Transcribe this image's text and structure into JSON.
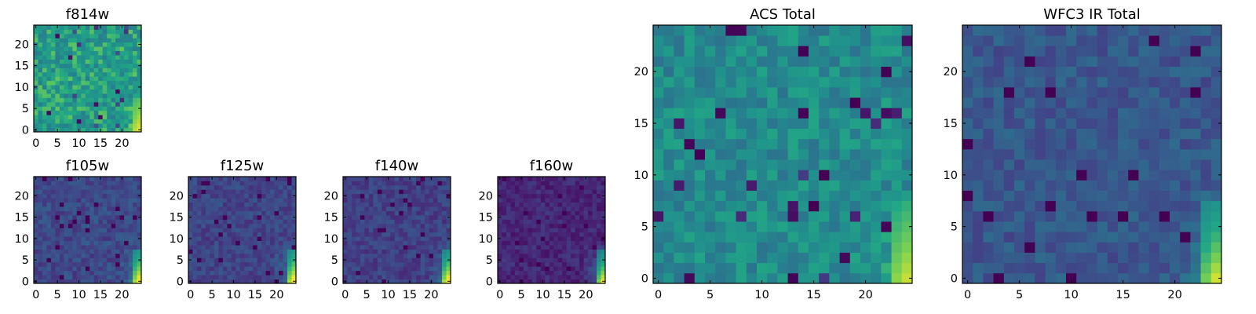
{
  "chart_data": [
    {
      "type": "heatmap",
      "title": "f814w",
      "grid": [
        25,
        25
      ],
      "xticks": [
        "0",
        "5",
        "10",
        "15",
        "20"
      ],
      "yticks": [
        "0",
        "5",
        "10",
        "15",
        "20"
      ],
      "colormap": "viridis",
      "base_level": 0.68,
      "noise": 0.16,
      "hot_corner": 0.3,
      "seed": 11
    },
    {
      "type": "heatmap",
      "title": "f105w",
      "grid": [
        25,
        25
      ],
      "xticks": [
        "0",
        "5",
        "10",
        "15",
        "20"
      ],
      "yticks": [
        "0",
        "5",
        "10",
        "15",
        "20"
      ],
      "colormap": "viridis",
      "base_level": 0.28,
      "noise": 0.1,
      "hot_corner": 0.75,
      "seed": 23
    },
    {
      "type": "heatmap",
      "title": "f125w",
      "grid": [
        25,
        25
      ],
      "xticks": [
        "0",
        "5",
        "10",
        "15",
        "20"
      ],
      "yticks": [
        "0",
        "5",
        "10",
        "15",
        "20"
      ],
      "colormap": "viridis",
      "base_level": 0.26,
      "noise": 0.09,
      "hot_corner": 0.78,
      "seed": 37
    },
    {
      "type": "heatmap",
      "title": "f140w",
      "grid": [
        25,
        25
      ],
      "xticks": [
        "0",
        "5",
        "10",
        "15",
        "20"
      ],
      "yticks": [
        "0",
        "5",
        "10",
        "15",
        "20"
      ],
      "colormap": "viridis",
      "base_level": 0.24,
      "noise": 0.09,
      "hot_corner": 0.8,
      "seed": 41
    },
    {
      "type": "heatmap",
      "title": "f160w",
      "grid": [
        25,
        25
      ],
      "xticks": [
        "0",
        "5",
        "10",
        "15",
        "20"
      ],
      "yticks": [
        "0",
        "5",
        "10",
        "15",
        "20"
      ],
      "colormap": "viridis",
      "base_level": 0.14,
      "noise": 0.08,
      "hot_corner": 0.86,
      "seed": 53
    },
    {
      "type": "heatmap",
      "title": "ACS Total",
      "grid": [
        25,
        25
      ],
      "xticks": [
        "0",
        "5",
        "10",
        "15",
        "20"
      ],
      "yticks": [
        "0",
        "5",
        "10",
        "15",
        "20"
      ],
      "colormap": "viridis",
      "base_level": 0.6,
      "noise": 0.13,
      "hot_corner": 0.35,
      "seed": 67
    },
    {
      "type": "heatmap",
      "title": "WFC3 IR Total",
      "grid": [
        25,
        25
      ],
      "xticks": [
        "0",
        "5",
        "10",
        "15",
        "20"
      ],
      "yticks": [
        "0",
        "5",
        "10",
        "15",
        "20"
      ],
      "colormap": "viridis",
      "base_level": 0.34,
      "noise": 0.1,
      "hot_corner": 0.62,
      "seed": 79
    }
  ]
}
